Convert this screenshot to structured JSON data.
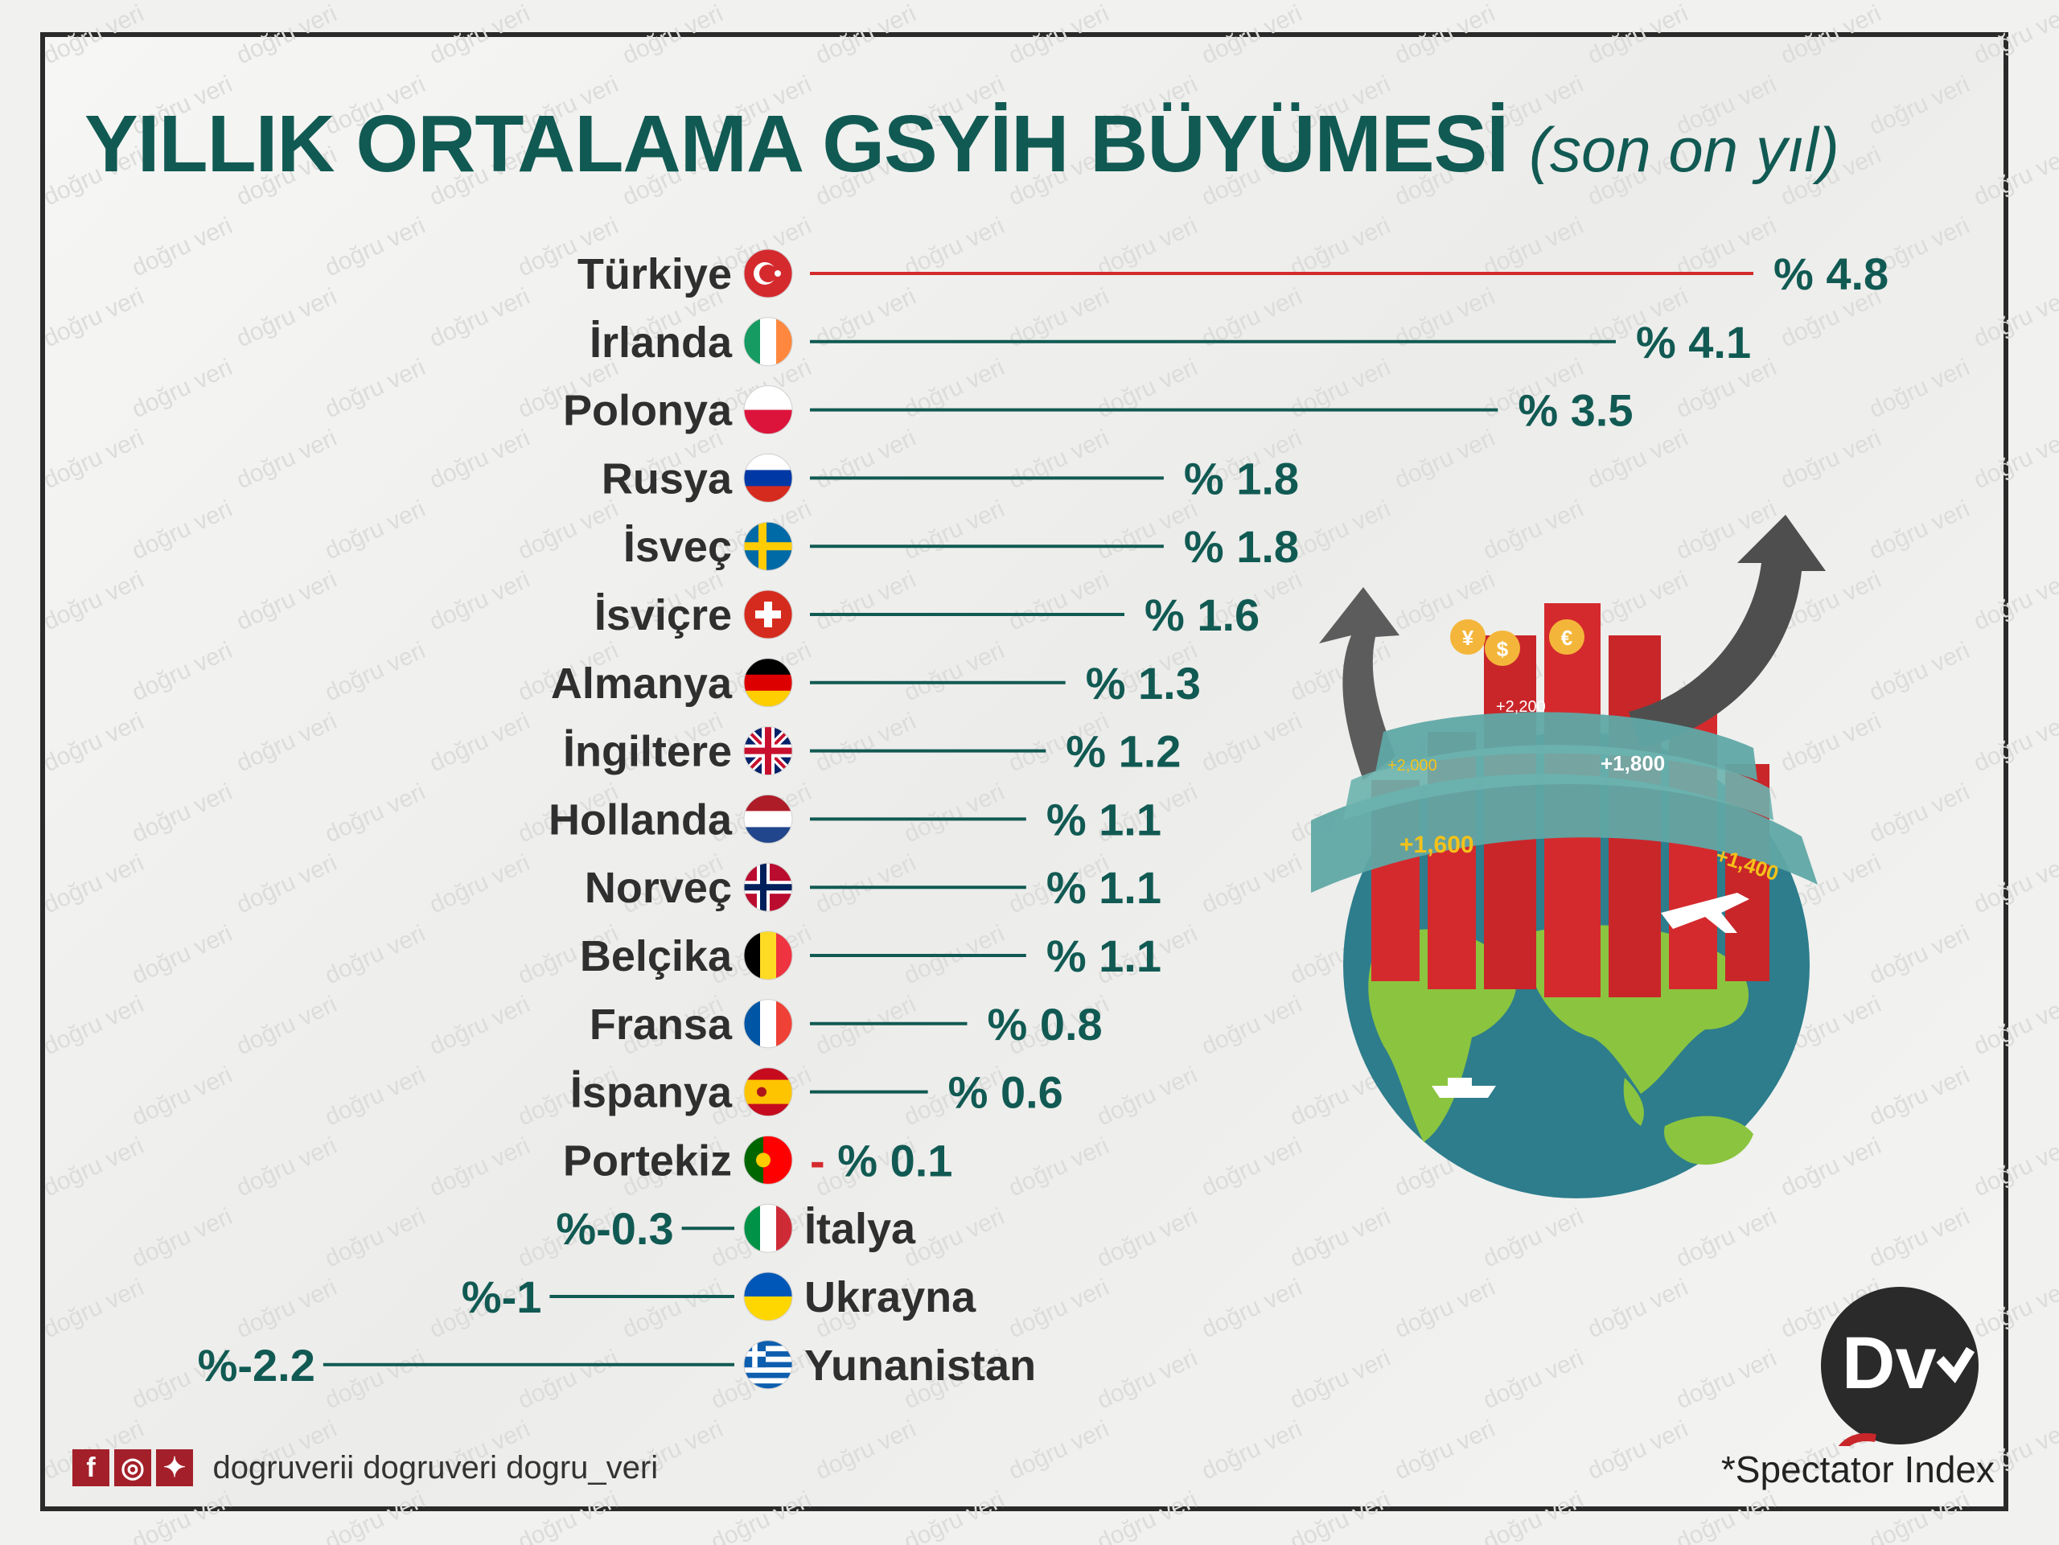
{
  "title": {
    "main": "YILLIK ORTALAMA GSYİH BÜYÜMESİ",
    "sub": "(son on yıl)"
  },
  "watermark_text": "doğru veri",
  "chart_data": {
    "type": "bar",
    "orientation": "horizontal",
    "title": "YILLIK ORTALAMA GSYİH BÜYÜMESİ (son on yıl)",
    "categories": [
      "Türkiye",
      "İrlanda",
      "Polonya",
      "Rusya",
      "İsveç",
      "İsviçre",
      "Almanya",
      "İngiltere",
      "Hollanda",
      "Norveç",
      "Belçika",
      "Fransa",
      "İspanya",
      "Portekiz",
      "İtalya",
      "Ukrayna",
      "Yunanistan"
    ],
    "values": [
      4.8,
      4.1,
      3.5,
      1.8,
      1.8,
      1.6,
      1.3,
      1.2,
      1.1,
      1.1,
      1.1,
      0.8,
      0.6,
      -0.1,
      -0.3,
      -1,
      -2.2
    ],
    "value_labels": [
      "% 4.8",
      "% 4.1",
      "% 3.5",
      "% 1.8",
      "% 1.8",
      "% 1.6",
      "% 1.3",
      "% 1.2",
      "% 1.1",
      "% 1.1",
      "% 1.1",
      "% 0.8",
      "% 0.6",
      "- % 0.1",
      "%-0.3",
      "%-1",
      "%-2.2"
    ],
    "highlight_category": "Türkiye",
    "colors": {
      "highlight": "#d42a2e",
      "default": "#115a53",
      "label": "#2f2f2f"
    },
    "flags": [
      "tr-flag-icon",
      "ie-flag-icon",
      "pl-flag-icon",
      "ru-flag-icon",
      "se-flag-icon",
      "ch-flag-icon",
      "de-flag-icon",
      "gb-flag-icon",
      "nl-flag-icon",
      "no-flag-icon",
      "be-flag-icon",
      "fr-flag-icon",
      "es-flag-icon",
      "pt-flag-icon",
      "it-flag-icon",
      "ua-flag-icon",
      "gr-flag-icon"
    ]
  },
  "globe_labels": [
    "+2,200",
    "+2,000",
    "+1,800",
    "+1,600",
    "+1,400"
  ],
  "footer": {
    "handles": "dogruverii  dogruveri  dogru_veri",
    "source": "*Spectator Index"
  },
  "logo_text": "Dv"
}
